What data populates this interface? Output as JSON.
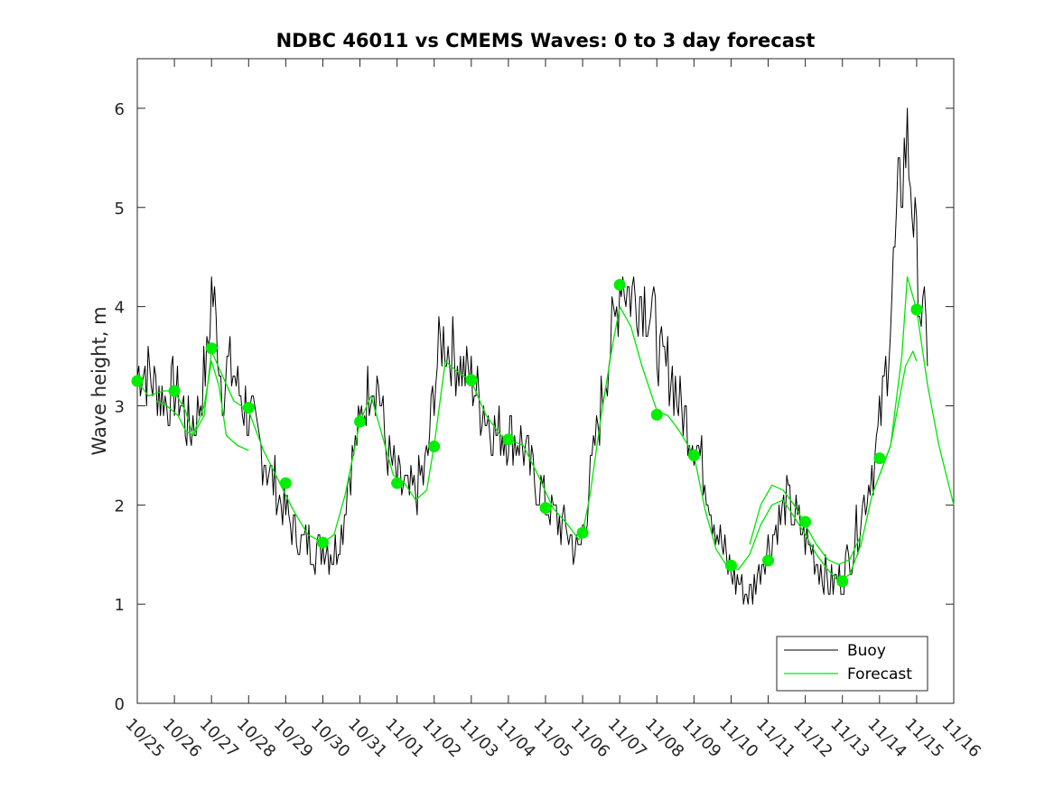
{
  "chart_data": {
    "type": "line",
    "title": "NDBC 46011 vs CMEMS Waves: 0 to 3 day forecast",
    "xlabel": "",
    "ylabel": "Wave height, m",
    "xlim": [
      0,
      22
    ],
    "ylim": [
      0,
      6.5
    ],
    "x_tick_labels": [
      "10/25",
      "10/26",
      "10/27",
      "10/28",
      "10/29",
      "10/30",
      "10/31",
      "11/01",
      "11/02",
      "11/03",
      "11/04",
      "11/05",
      "11/06",
      "11/07",
      "11/08",
      "11/09",
      "11/10",
      "11/11",
      "11/12",
      "11/13",
      "11/14",
      "11/15",
      "11/16"
    ],
    "y_ticks": [
      0,
      1,
      2,
      3,
      4,
      5,
      6
    ],
    "grid": false,
    "legend_position": "bottom-right",
    "colors": {
      "buoy": "#000000",
      "forecast": "#00e600",
      "markers": "#00ee00"
    },
    "series": [
      {
        "name": "Buoy",
        "style": "noisy",
        "x": [
          0,
          0.1,
          0.3,
          0.5,
          0.8,
          1.0,
          1.2,
          1.4,
          1.6,
          1.9,
          2.0,
          2.1,
          2.3,
          2.5,
          2.9,
          3.3,
          3.7,
          4.0,
          4.4,
          4.8,
          5.0,
          5.3,
          5.5,
          5.7,
          6.0,
          6.3,
          6.5,
          6.7,
          7.0,
          7.3,
          7.6,
          7.8,
          8.0,
          8.2,
          8.5,
          8.9,
          9.3,
          9.7,
          10.0,
          10.4,
          10.8,
          11.2,
          11.6,
          11.9,
          12.1,
          12.3,
          12.6,
          12.9,
          13.05,
          13.3,
          13.6,
          13.9,
          14.1,
          14.4,
          14.7,
          15.0,
          15.3,
          15.6,
          15.9,
          16.2,
          16.4,
          16.6,
          16.9,
          17.2,
          17.5,
          17.8,
          18.1,
          18.4,
          18.7,
          19.0,
          19.3,
          19.6,
          19.9,
          20.2,
          20.5,
          20.75,
          20.9,
          21.1,
          21.3
        ],
        "values": [
          3.3,
          3.4,
          3.35,
          3.2,
          3.05,
          3.2,
          3.0,
          2.75,
          2.9,
          3.5,
          4.2,
          3.9,
          3.2,
          3.4,
          3.0,
          2.6,
          2.2,
          1.9,
          1.65,
          1.55,
          1.6,
          1.5,
          1.75,
          2.3,
          2.8,
          3.3,
          3.2,
          2.6,
          2.25,
          2.1,
          2.2,
          2.4,
          3.2,
          3.7,
          3.5,
          3.3,
          3.0,
          2.7,
          2.75,
          2.6,
          2.2,
          1.9,
          1.75,
          1.5,
          1.95,
          2.5,
          3.3,
          3.9,
          4.4,
          4.1,
          4.15,
          3.9,
          3.4,
          3.35,
          2.9,
          2.7,
          2.3,
          1.75,
          1.4,
          1.2,
          1.1,
          1.15,
          1.5,
          1.75,
          2.05,
          1.8,
          1.6,
          1.35,
          1.2,
          1.25,
          1.6,
          2.1,
          2.5,
          3.4,
          5.0,
          5.7,
          5.0,
          4.0,
          3.6
        ]
      },
      {
        "name": "Forecast",
        "x": [
          0,
          0.3,
          0.7,
          1.0,
          1.3,
          1.5,
          1.8,
          2.0,
          2.3,
          2.6,
          3.0,
          3.4,
          3.8,
          4.2,
          4.6,
          5.0,
          5.3,
          5.6,
          6.0,
          6.3,
          6.6,
          6.9,
          7.2,
          7.5,
          7.8,
          8.0,
          8.3,
          8.6,
          9.0,
          9.4,
          9.8,
          10.0,
          10.4,
          10.8,
          11.2,
          11.6,
          11.9,
          12.0,
          12.2,
          12.5,
          12.8,
          13.0,
          13.3,
          13.6,
          14.0,
          14.3,
          14.6,
          15.0,
          15.3,
          15.6,
          15.9,
          16.2,
          16.5,
          16.8,
          17.1,
          17.4,
          17.7,
          18.0,
          18.3,
          18.6,
          18.9,
          19.2,
          19.5,
          19.8,
          20.0,
          20.3,
          20.6,
          20.75,
          21.0,
          21.3,
          21.6,
          22.0
        ],
        "values": [
          3.25,
          3.1,
          3.15,
          3.15,
          2.95,
          2.7,
          2.9,
          3.55,
          3.3,
          3.05,
          2.95,
          2.55,
          2.25,
          1.95,
          1.7,
          1.62,
          1.7,
          2.1,
          2.84,
          3.1,
          2.7,
          2.3,
          2.22,
          2.05,
          2.15,
          2.6,
          3.45,
          3.35,
          3.25,
          2.9,
          2.7,
          2.66,
          2.6,
          2.3,
          1.97,
          1.8,
          1.65,
          1.72,
          2.1,
          2.9,
          3.6,
          4.0,
          3.8,
          3.4,
          2.95,
          2.9,
          2.75,
          2.5,
          1.95,
          1.55,
          1.38,
          1.35,
          1.5,
          1.8,
          2.0,
          2.05,
          1.88,
          1.7,
          1.5,
          1.35,
          1.23,
          1.3,
          1.6,
          2.1,
          2.3,
          2.6,
          3.5,
          4.3,
          3.97,
          3.2,
          2.6,
          2.0
        ]
      },
      {
        "name": "",
        "x": [
          0.5,
          0.8,
          1.1,
          1.3,
          1.5,
          1.8,
          2.0,
          2.2,
          2.4,
          2.7,
          3.0
        ],
        "values": [
          3.05,
          3.0,
          2.9,
          2.75,
          2.7,
          3.0,
          3.45,
          3.2,
          2.7,
          2.6,
          2.55
        ]
      },
      {
        "name": "",
        "x": [
          16.5,
          16.8,
          17.1,
          17.4,
          17.7,
          18.0,
          18.3,
          18.6,
          18.9,
          19.2,
          19.5
        ],
        "values": [
          1.6,
          2.0,
          2.2,
          2.15,
          2.0,
          1.8,
          1.6,
          1.45,
          1.4,
          1.45,
          1.7
        ]
      },
      {
        "name": "",
        "x": [
          20.0,
          20.3,
          20.5,
          20.7,
          20.9,
          21.0
        ],
        "values": [
          2.3,
          2.6,
          3.0,
          3.4,
          3.55,
          3.45
        ]
      }
    ],
    "markers": {
      "name": "",
      "x": [
        0,
        1,
        2,
        3,
        4,
        5,
        6,
        7,
        8,
        9,
        10,
        11,
        12,
        13,
        14,
        15,
        16,
        17,
        18,
        19,
        20,
        21
      ],
      "values": [
        3.25,
        3.15,
        3.58,
        2.98,
        2.22,
        1.62,
        2.84,
        2.22,
        2.59,
        3.26,
        2.66,
        1.97,
        1.72,
        4.22,
        2.91,
        2.5,
        1.39,
        1.44,
        1.83,
        1.23,
        2.47,
        3.97
      ]
    }
  }
}
